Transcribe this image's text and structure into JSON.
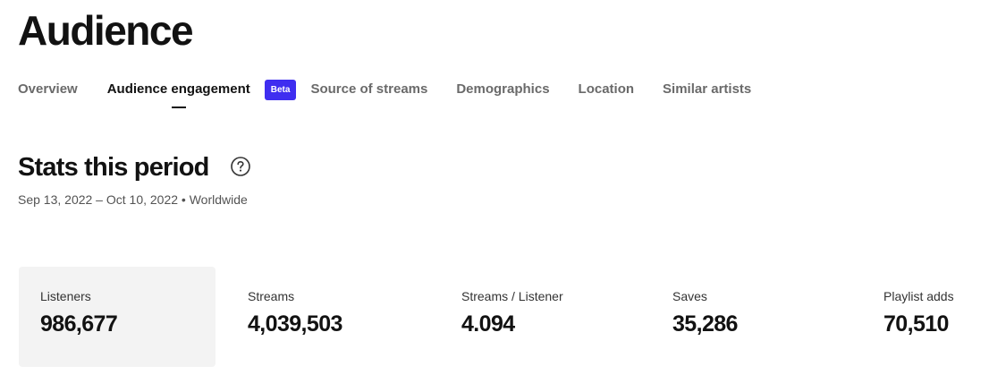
{
  "page": {
    "title": "Audience"
  },
  "tabs": [
    {
      "label": "Overview",
      "active": false
    },
    {
      "label": "Audience engagement",
      "active": true,
      "badge": "Beta"
    },
    {
      "label": "Source of streams",
      "active": false
    },
    {
      "label": "Demographics",
      "active": false
    },
    {
      "label": "Location",
      "active": false
    },
    {
      "label": "Similar artists",
      "active": false
    }
  ],
  "stats": {
    "title": "Stats this period",
    "help_icon": "question-circle",
    "subtitle": "Sep 13, 2022 – Oct 10, 2022 • Worldwide",
    "cards": [
      {
        "label": "Listeners",
        "value": "986,677",
        "selected": true
      },
      {
        "label": "Streams",
        "value": "4,039,503",
        "selected": false
      },
      {
        "label": "Streams / Listener",
        "value": "4.094",
        "selected": false
      },
      {
        "label": "Saves",
        "value": "35,286",
        "selected": false
      },
      {
        "label": "Playlist adds",
        "value": "70,510",
        "selected": false
      }
    ]
  },
  "colors": {
    "accent_badge": "#3f2ef0",
    "selected_card_bg": "#f3f3f3",
    "text_primary": "#121212",
    "text_muted": "#6a6a6a"
  }
}
